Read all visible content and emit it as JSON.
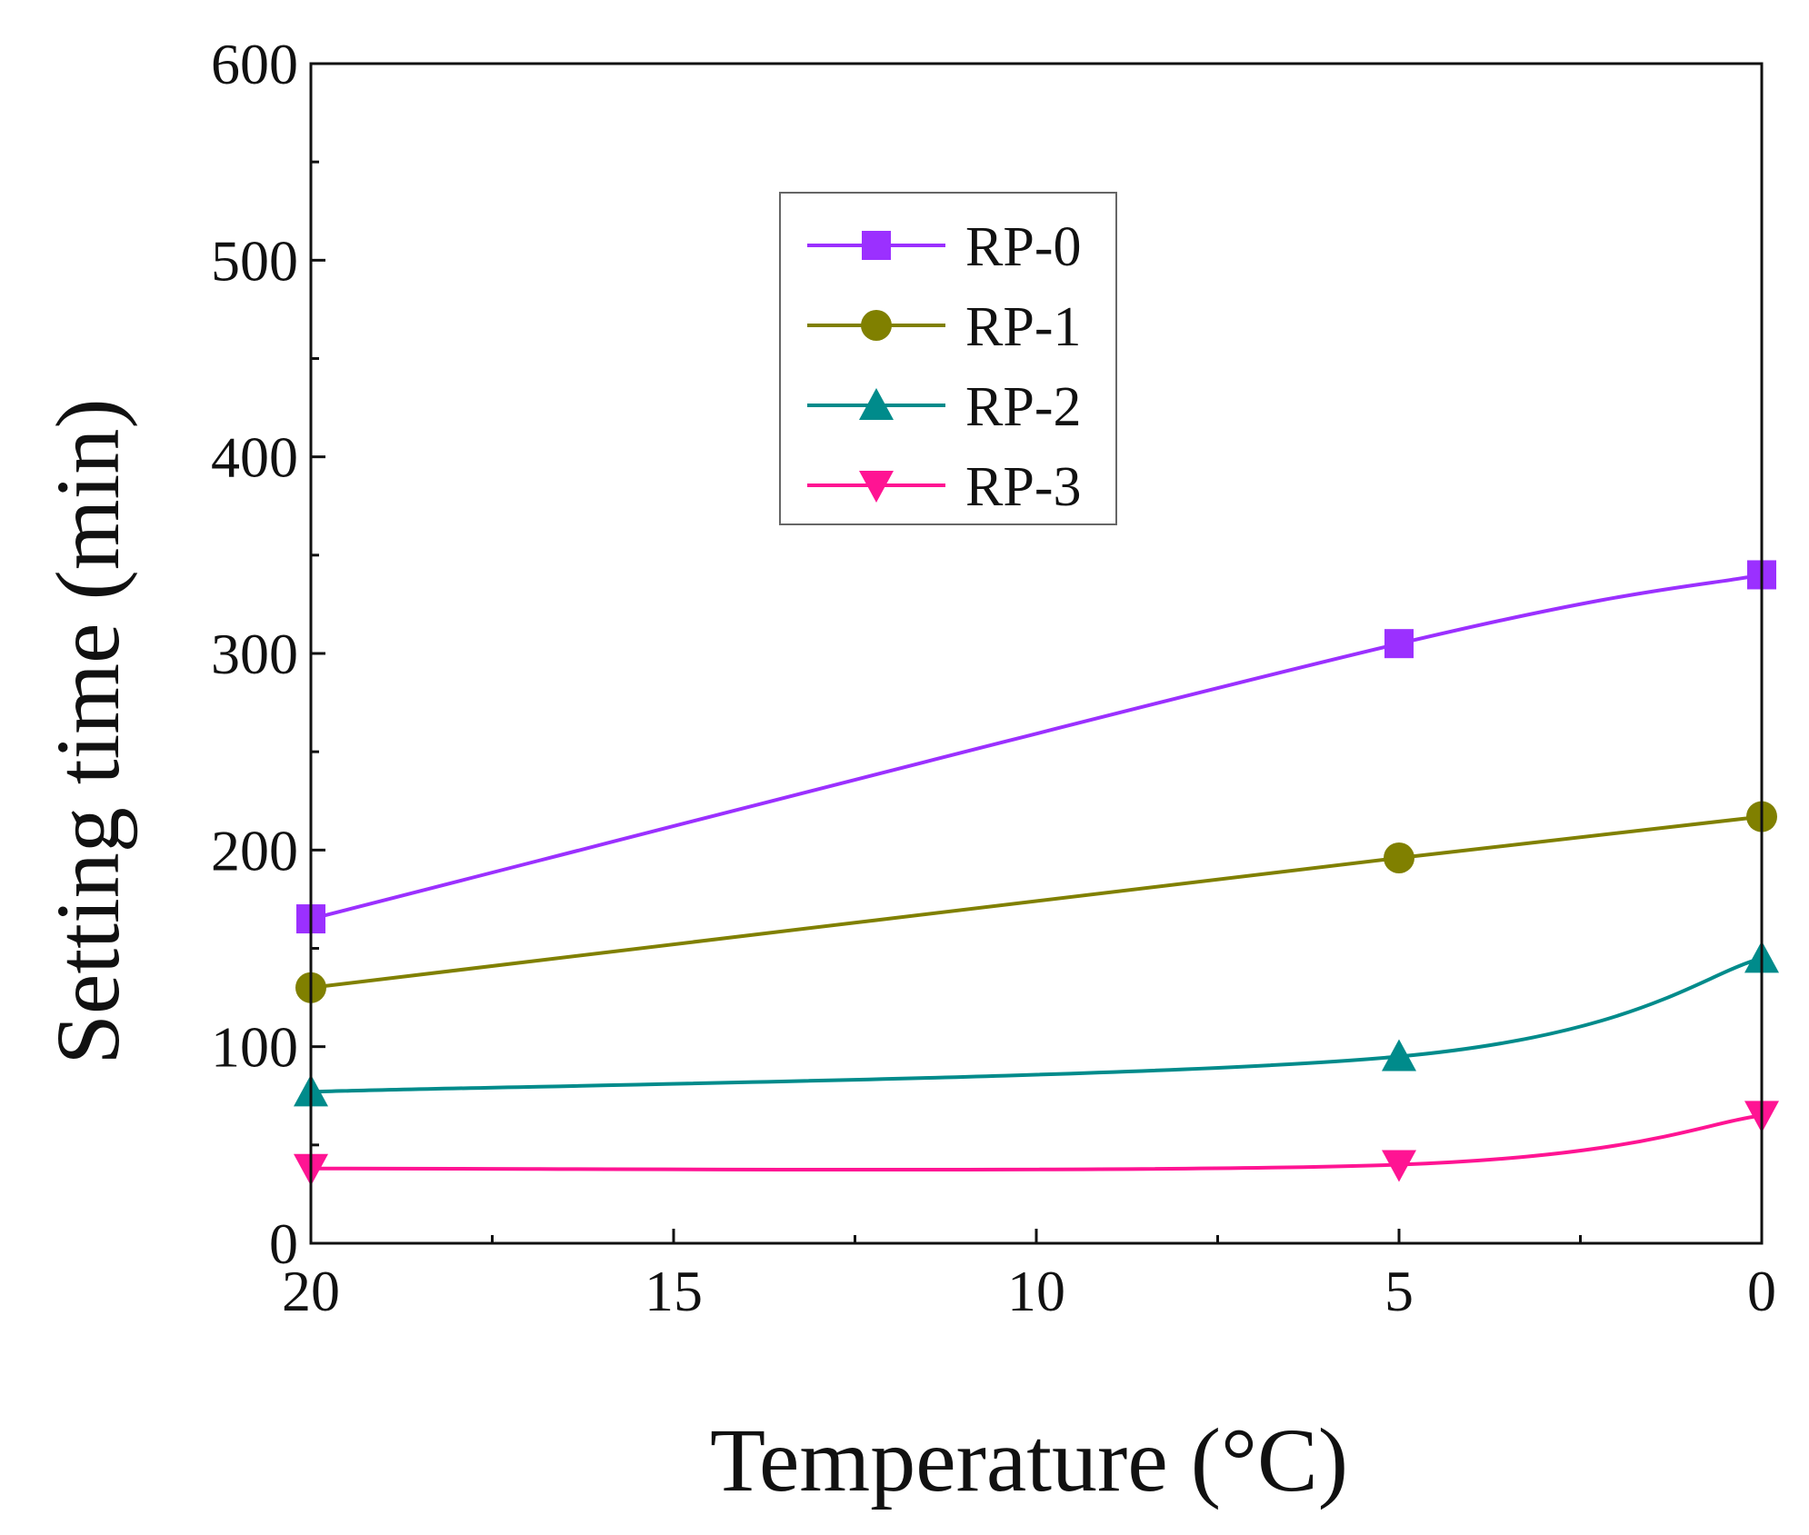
{
  "chart_data": {
    "type": "line",
    "title": "",
    "xlabel": "Temperature (°C)",
    "ylabel": "Setting time (min)",
    "xlim": [
      20,
      0
    ],
    "ylim": [
      0,
      600
    ],
    "x_ticks": [
      20,
      15,
      10,
      5,
      0
    ],
    "y_ticks": [
      0,
      100,
      200,
      300,
      400,
      500,
      600
    ],
    "x": [
      20,
      5,
      0
    ],
    "legend_position": "top-center",
    "series": [
      {
        "name": "RP-0",
        "marker": "square",
        "color": "#9b30ff",
        "values": [
          165,
          305,
          340
        ]
      },
      {
        "name": "RP-1",
        "marker": "circle",
        "color": "#808000",
        "values": [
          130,
          196,
          217
        ]
      },
      {
        "name": "RP-2",
        "marker": "triangle-up",
        "color": "#008b8b",
        "values": [
          77,
          95,
          145
        ]
      },
      {
        "name": "RP-3",
        "marker": "triangle-down",
        "color": "#ff1493",
        "values": [
          38,
          40,
          65
        ]
      }
    ]
  }
}
